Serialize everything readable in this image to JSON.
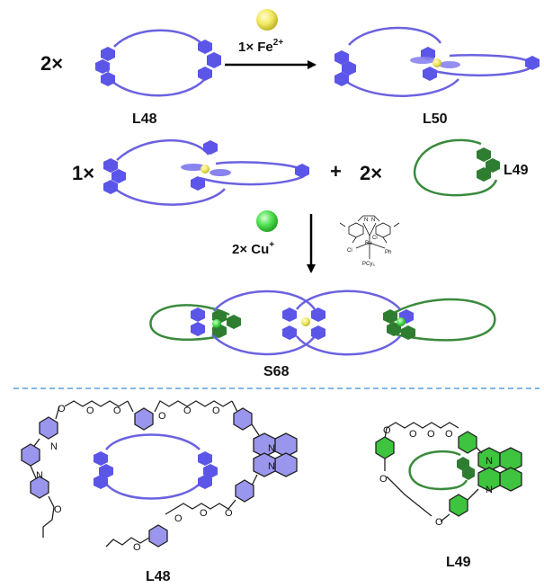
{
  "colors": {
    "blue_ring": "#6b62e0",
    "blue_unit": "#5b55e8",
    "green_ring": "#3a8a3c",
    "green_unit": "#2f7d31",
    "iron": "#f2ea63",
    "copper": "#4fe04f",
    "divider": "#5b9ee0"
  },
  "row1": {
    "multiplier": "2×",
    "left_label": "L48",
    "reagent": "1× Fe",
    "reagent_charge": "2+",
    "right_label": "L50"
  },
  "row2": {
    "multiplier_1": "1×",
    "plus": "+",
    "multiplier_2": "2×",
    "green_label": "L49"
  },
  "row3": {
    "reagent": "2× Cu",
    "reagent_charge": "+",
    "catalyst": {
      "ru": "Ru",
      "cl1": "Cl",
      "cl2": "Cl",
      "ph": "Ph",
      "n1": "N",
      "n2": "N",
      "pcy": "PCy",
      "pcy_sub": "3"
    },
    "product_label": "S68"
  },
  "structures": {
    "l48_label": "L48",
    "l49_label": "L49",
    "o": "O",
    "n": "N"
  },
  "icons": [
    "iron-ion-icon",
    "copper-ion-icon",
    "reaction-arrow-icon",
    "grubbs-catalyst-icon"
  ]
}
